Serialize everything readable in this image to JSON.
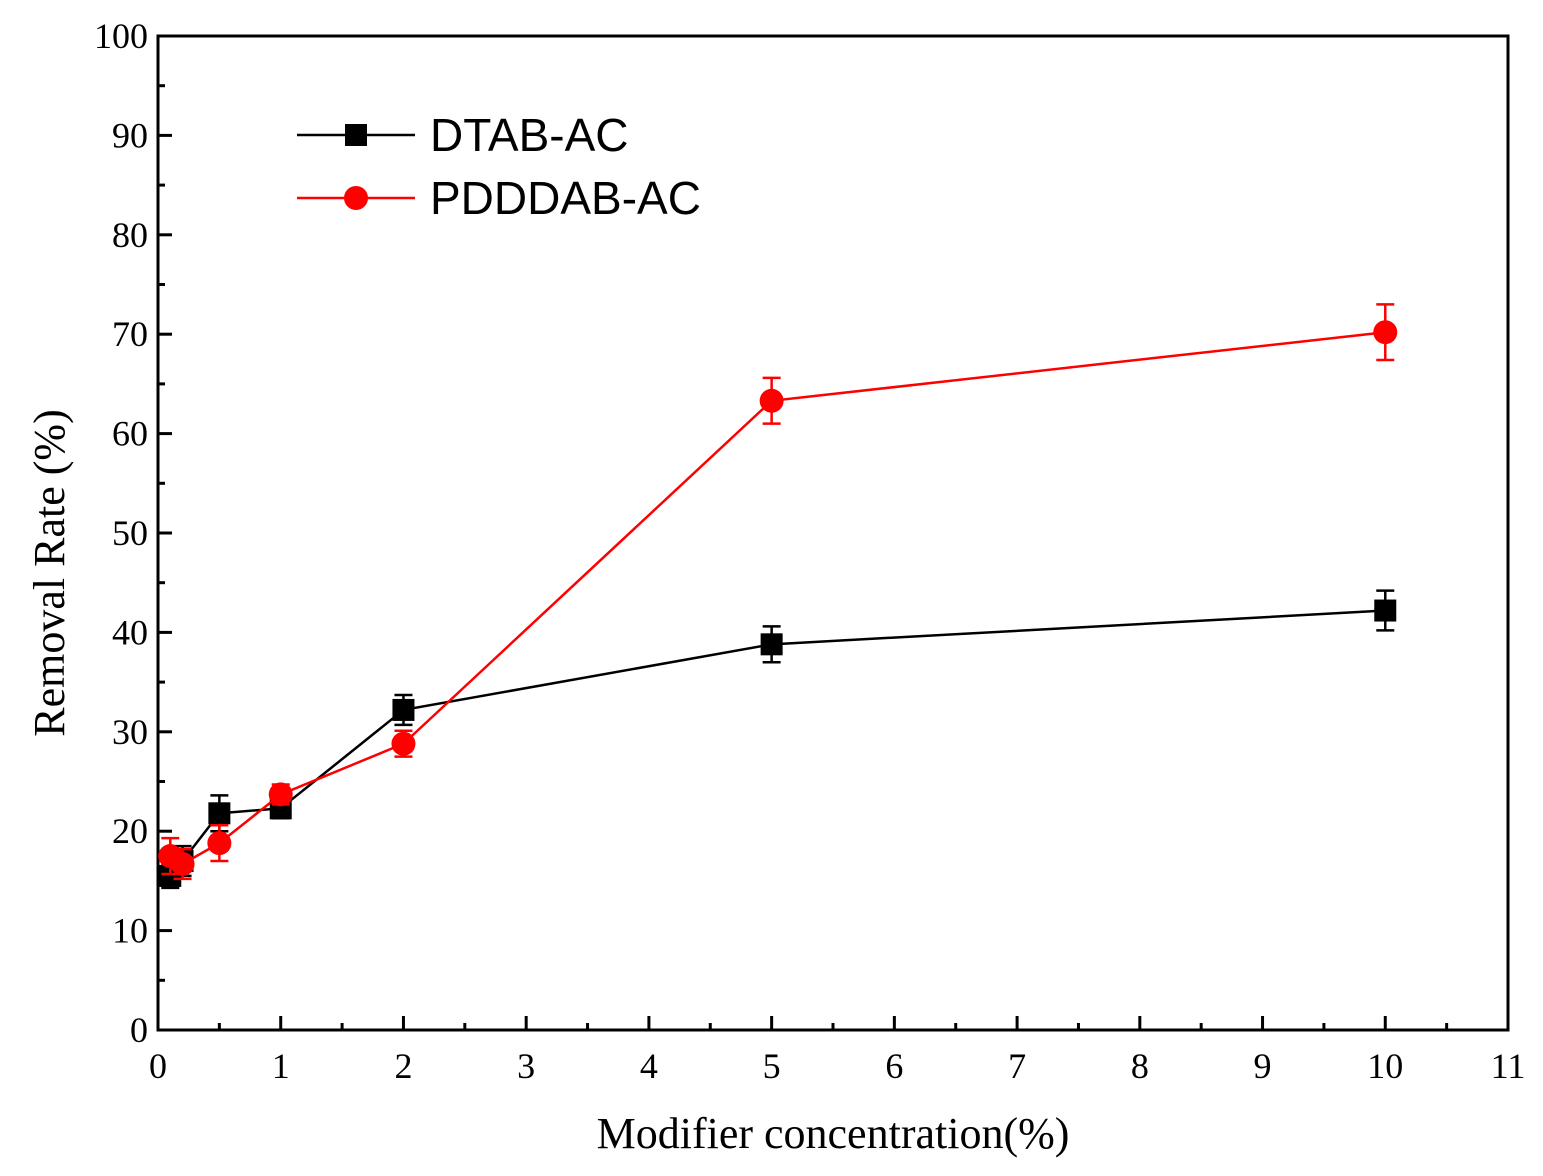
{
  "chart_data": {
    "type": "line",
    "title": "",
    "xlabel": "Modifier concentration(%)",
    "ylabel": "Removal Rate (%)",
    "xlim": [
      0,
      11
    ],
    "ylim": [
      0,
      100
    ],
    "xticks": [
      "0",
      "1",
      "2",
      "3",
      "4",
      "5",
      "6",
      "7",
      "8",
      "9",
      "10",
      "11"
    ],
    "yticks": [
      "0",
      "10",
      "20",
      "30",
      "40",
      "50",
      "60",
      "70",
      "80",
      "90",
      "100"
    ],
    "grid": false,
    "legend_position": "top-left",
    "series": [
      {
        "name": "DTAB-AC",
        "color": "#000000",
        "marker": "square",
        "x": [
          0.1,
          0.2,
          0.5,
          1,
          2,
          5,
          10
        ],
        "values": [
          15.5,
          17.0,
          21.8,
          22.3,
          32.2,
          38.8,
          42.2
        ],
        "errors": [
          1.2,
          1.5,
          1.8,
          1.0,
          1.5,
          1.8,
          2.0
        ]
      },
      {
        "name": "PDDDAB-AC",
        "color": "#ff0000",
        "marker": "circle",
        "x": [
          0.1,
          0.2,
          0.5,
          1,
          2,
          5,
          10
        ],
        "values": [
          17.5,
          16.7,
          18.8,
          23.7,
          28.8,
          63.3,
          70.2
        ],
        "errors": [
          1.8,
          1.5,
          1.8,
          1.0,
          1.3,
          2.3,
          2.8
        ]
      }
    ]
  }
}
